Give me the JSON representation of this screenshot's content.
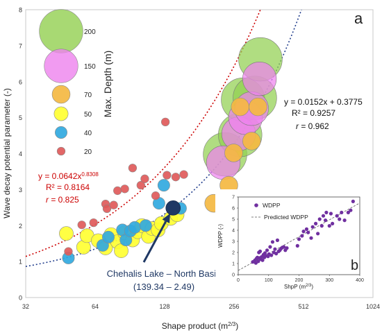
{
  "chart_data": [
    {
      "type": "scatter",
      "panel_label": "a",
      "xlabel": "Shape product (m",
      "xlabel_sup": "2/3",
      "xlabel_end": ")",
      "ylabel": "Wave decay potential parameter (-)",
      "x_scale": "log2",
      "xlim": [
        32,
        1024
      ],
      "ylim": [
        0,
        8
      ],
      "x_ticks": [
        "32",
        "64",
        "128",
        "256",
        "512",
        "1024"
      ],
      "y_ticks": [
        "0",
        "1",
        "2",
        "3",
        "4",
        "5",
        "6",
        "7",
        "8"
      ],
      "size_legend": {
        "title": "Max. Depth (m)",
        "entries": [
          {
            "label": "200",
            "depth": 200,
            "color": "#92d050"
          },
          {
            "label": "150",
            "depth": 150,
            "color": "#ee82ee"
          },
          {
            "label": "70",
            "depth": 70,
            "color": "#f4b942"
          },
          {
            "label": "50",
            "depth": 50,
            "color": "#ffff33"
          },
          {
            "label": "40",
            "depth": 40,
            "color": "#31a9e0"
          },
          {
            "label": "20",
            "depth": 20,
            "color": "#e05a5a"
          }
        ]
      },
      "points": [
        {
          "x": 49,
          "y": 1.28,
          "depth": 20
        },
        {
          "x": 56,
          "y": 2.02,
          "depth": 20
        },
        {
          "x": 63,
          "y": 2.08,
          "depth": 20
        },
        {
          "x": 71,
          "y": 2.6,
          "depth": 20
        },
        {
          "x": 72,
          "y": 2.47,
          "depth": 20
        },
        {
          "x": 77,
          "y": 2.57,
          "depth": 20
        },
        {
          "x": 80,
          "y": 2.97,
          "depth": 20
        },
        {
          "x": 86,
          "y": 3.02,
          "depth": 20
        },
        {
          "x": 93,
          "y": 3.6,
          "depth": 20
        },
        {
          "x": 101,
          "y": 3.12,
          "depth": 20
        },
        {
          "x": 105,
          "y": 3.3,
          "depth": 20
        },
        {
          "x": 117,
          "y": 2.83,
          "depth": 20
        },
        {
          "x": 129,
          "y": 4.88,
          "depth": 20
        },
        {
          "x": 131,
          "y": 3.4,
          "depth": 20
        },
        {
          "x": 143,
          "y": 3.35,
          "depth": 20
        },
        {
          "x": 155,
          "y": 3.42,
          "depth": 20
        },
        {
          "x": 49,
          "y": 1.1,
          "depth": 40
        },
        {
          "x": 69,
          "y": 1.45,
          "depth": 40
        },
        {
          "x": 73,
          "y": 1.68,
          "depth": 40
        },
        {
          "x": 84,
          "y": 1.88,
          "depth": 40
        },
        {
          "x": 87,
          "y": 1.6,
          "depth": 40
        },
        {
          "x": 91,
          "y": 1.85,
          "depth": 40
        },
        {
          "x": 95,
          "y": 1.95,
          "depth": 40
        },
        {
          "x": 106,
          "y": 2.0,
          "depth": 40
        },
        {
          "x": 121,
          "y": 2.62,
          "depth": 40
        },
        {
          "x": 127,
          "y": 3.12,
          "depth": 40
        },
        {
          "x": 150,
          "y": 2.48,
          "depth": 40
        },
        {
          "x": 48,
          "y": 1.78,
          "depth": 50
        },
        {
          "x": 57,
          "y": 1.4,
          "depth": 50
        },
        {
          "x": 59,
          "y": 1.72,
          "depth": 50
        },
        {
          "x": 66,
          "y": 1.58,
          "depth": 50
        },
        {
          "x": 71,
          "y": 1.38,
          "depth": 50
        },
        {
          "x": 75,
          "y": 1.75,
          "depth": 50
        },
        {
          "x": 80,
          "y": 1.55,
          "depth": 50
        },
        {
          "x": 83,
          "y": 1.3,
          "depth": 50
        },
        {
          "x": 86,
          "y": 1.8,
          "depth": 50
        },
        {
          "x": 93,
          "y": 1.6,
          "depth": 50
        },
        {
          "x": 98,
          "y": 1.83,
          "depth": 50
        },
        {
          "x": 102,
          "y": 2.0,
          "depth": 50
        },
        {
          "x": 109,
          "y": 1.7,
          "depth": 50
        },
        {
          "x": 113,
          "y": 1.92,
          "depth": 50
        },
        {
          "x": 120,
          "y": 1.88,
          "depth": 50
        },
        {
          "x": 124,
          "y": 2.06,
          "depth": 50
        },
        {
          "x": 136,
          "y": 2.2,
          "depth": 50
        },
        {
          "x": 145,
          "y": 2.3,
          "depth": 50
        },
        {
          "x": 209,
          "y": 2.62,
          "depth": 70
        },
        {
          "x": 243,
          "y": 3.12,
          "depth": 70
        },
        {
          "x": 255,
          "y": 4.02,
          "depth": 70
        },
        {
          "x": 272,
          "y": 5.3,
          "depth": 70
        },
        {
          "x": 305,
          "y": 4.35,
          "depth": 70
        },
        {
          "x": 325,
          "y": 5.3,
          "depth": 70
        },
        {
          "x": 230,
          "y": 3.75,
          "depth": 150
        },
        {
          "x": 268,
          "y": 4.55,
          "depth": 150
        },
        {
          "x": 287,
          "y": 5.0,
          "depth": 150
        },
        {
          "x": 305,
          "y": 5.25,
          "depth": 150
        },
        {
          "x": 330,
          "y": 6.08,
          "depth": 150
        },
        {
          "x": 234,
          "y": 3.98,
          "depth": 200
        },
        {
          "x": 272,
          "y": 4.52,
          "depth": 200
        },
        {
          "x": 280,
          "y": 5.5,
          "depth": 200
        },
        {
          "x": 315,
          "y": 5.55,
          "depth": 200
        },
        {
          "x": 333,
          "y": 6.62,
          "depth": 200
        }
      ],
      "highlight": {
        "x": 139.34,
        "y": 2.49,
        "color": "#1f3864"
      },
      "annotation": {
        "line1": "Chehalis Lake – North Basin",
        "line2": "(139.34 – 2.49)"
      },
      "fits": [
        {
          "kind": "power",
          "a": 0.0642,
          "b": 0.8308,
          "color": "#cc0000",
          "label_line1": "y = 0.0642x",
          "label_sup": "0.8308",
          "label_line2": "R² = 0.8164",
          "label_r": "r",
          "label_r_val": " = 0.825"
        },
        {
          "kind": "linear",
          "m": 0.0152,
          "c": 0.3775,
          "color": "#203d8c",
          "label_line1": "y = 0.0152x + 0.3775",
          "label_line2": "R² = 0.9257",
          "label_r": "r",
          "label_r_val": " = 0.962"
        }
      ]
    },
    {
      "type": "scatter",
      "panel_label": "b",
      "xlabel": "ShpP (m",
      "xlabel_sup": "2/3",
      "xlabel_end": ")",
      "ylabel": "WDPP (-)",
      "xlim": [
        0,
        400
      ],
      "ylim": [
        0,
        7
      ],
      "x_ticks": [
        0,
        100,
        200,
        300,
        400
      ],
      "y_ticks": [
        0,
        1,
        2,
        3,
        4,
        5,
        6,
        7
      ],
      "legend": {
        "series": "WDPP",
        "line": "Predicted WDPP"
      },
      "series": [
        {
          "name": "WDPP",
          "color": "#7030a0",
          "x": [
            48,
            55,
            58,
            60,
            63,
            66,
            68,
            70,
            72,
            74,
            77,
            80,
            83,
            86,
            88,
            91,
            95,
            98,
            101,
            105,
            109,
            113,
            117,
            121,
            125,
            129,
            133,
            137,
            141,
            145,
            150,
            155,
            160,
            195,
            200,
            210,
            215,
            225,
            230,
            240,
            245,
            255,
            262,
            268,
            275,
            280,
            287,
            290,
            300,
            305,
            310,
            325,
            333,
            340,
            350,
            362,
            370,
            378
          ],
          "y": [
            1.15,
            1.3,
            1.05,
            1.45,
            1.55,
            1.2,
            2.0,
            1.5,
            2.1,
            1.4,
            1.6,
            1.3,
            1.8,
            1.55,
            1.95,
            1.7,
            2.2,
            1.65,
            1.85,
            2.5,
            1.75,
            2.95,
            2.0,
            2.3,
            1.9,
            3.1,
            2.1,
            2.2,
            2.35,
            2.45,
            2.5,
            2.2,
            2.4,
            2.6,
            3.2,
            3.5,
            3.9,
            4.1,
            3.8,
            3.3,
            4.3,
            4.6,
            3.7,
            5.0,
            4.4,
            5.3,
            4.9,
            5.6,
            4.4,
            5.5,
            4.6,
            5.3,
            5.0,
            5.6,
            4.9,
            5.6,
            5.8,
            6.6
          ]
        }
      ],
      "fit": {
        "m": 0.0152,
        "c": 0.3775
      }
    }
  ]
}
